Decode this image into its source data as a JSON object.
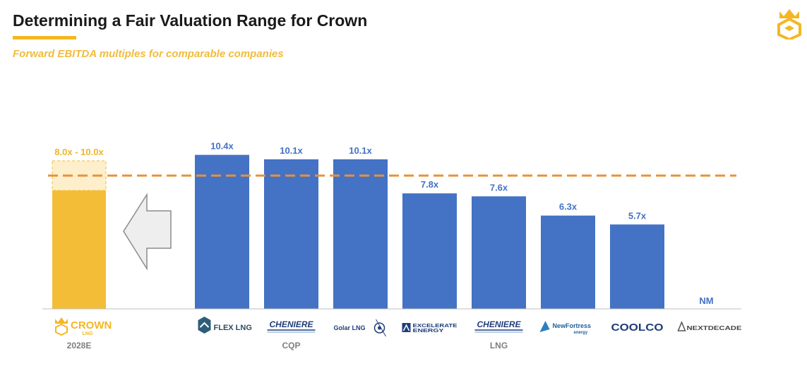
{
  "header": {
    "title": "Determining a Fair Valuation Range for Crown",
    "subtitle": "Forward EBITDA multiples for comparable companies"
  },
  "colors": {
    "bar": "#4472c4",
    "crown_bar": "#f4bd37",
    "crown_range": "#fdefcb",
    "accent": "#f4b722",
    "dashed_line": "#e8913a",
    "label_orange": "#f0b429",
    "label_blue": "#4472c4"
  },
  "chart_data": {
    "type": "bar",
    "crown": {
      "company": "CROWN",
      "company_sub": "LNG",
      "category": "2028E",
      "range_low": 8.0,
      "range_high": 10.0,
      "label": "8.0x - 10.0x",
      "logo_icon": "crown-logo-icon"
    },
    "comparables": [
      {
        "company": "FLEX LNG",
        "value": 10.4,
        "label": "10.4x",
        "logo_icon": "flex-lng-logo-icon"
      },
      {
        "company": "CHENIERE",
        "value": 10.1,
        "label": "10.1x",
        "logo_icon": "cheniere-logo-icon"
      },
      {
        "company": "Golar LNG",
        "value": 10.1,
        "label": "10.1x",
        "logo_icon": "golar-lng-logo-icon"
      },
      {
        "company": "EXCELERATE ENERGY",
        "value": 7.8,
        "label": "7.8x",
        "logo_icon": "excelerate-energy-logo-icon"
      },
      {
        "company": "CHENIERE",
        "value": 7.6,
        "label": "7.6x",
        "logo_icon": "cheniere-logo-icon"
      },
      {
        "company": "NewFortress energy",
        "value": 6.3,
        "label": "6.3x",
        "logo_icon": "new-fortress-energy-logo-icon"
      },
      {
        "company": "COOLCO",
        "value": 5.7,
        "label": "5.7x",
        "logo_icon": "coolco-logo-icon"
      },
      {
        "company": "NEXTDECADE",
        "value": null,
        "label": "NM",
        "logo_icon": "nextdecade-logo-icon"
      }
    ],
    "reference_line": {
      "value": 9.0,
      "style": "dashed"
    },
    "category_labels": [
      {
        "text": "CQP",
        "under_bar": 1
      },
      {
        "text": "LNG",
        "under_bar": 4
      }
    ],
    "ylim": [
      0,
      11
    ],
    "grid": false,
    "legend": "none",
    "arrow": {
      "direction": "left",
      "icon": "left-arrow-icon"
    }
  }
}
